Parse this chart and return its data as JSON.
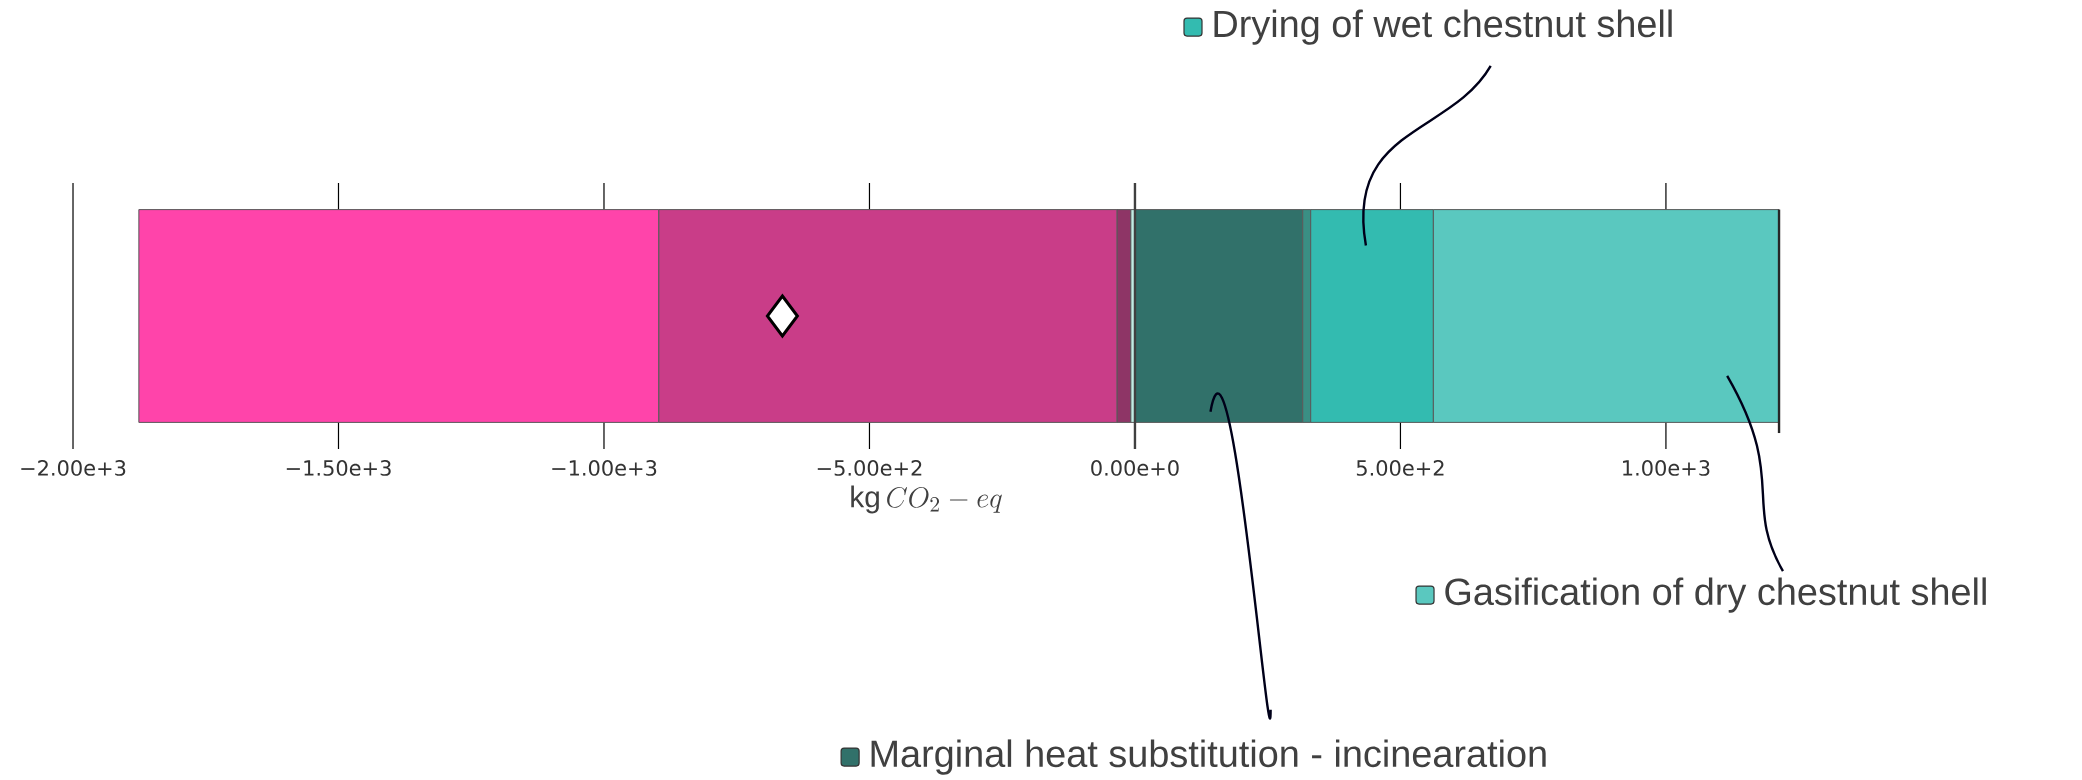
{
  "chart_data": {
    "type": "bar",
    "orientation": "horizontal",
    "stacked": true,
    "categories": [
      null
    ],
    "series": [
      {
        "color": "#c0ede4",
        "values": [
          -8
        ]
      },
      {
        "color": "#8e3566",
        "values": [
          -26
        ]
      },
      {
        "color": "#c93d88",
        "values": [
          -863
        ]
      },
      {
        "color": "#ff44aa",
        "values": [
          -979
        ]
      },
      {
        "name": "Marginal heat substitution - incinearation",
        "color": "#31716a",
        "values": [
          316
        ]
      },
      {
        "color": "#3a8f84",
        "values": [
          15
        ]
      },
      {
        "name": "Drying of wet chestnut shell",
        "color": "#33bbb0",
        "values": [
          231
        ]
      },
      {
        "name": "Gasification of dry chestnut shell",
        "color": "#5ac8bf",
        "values": [
          651
        ]
      },
      {
        "type": "scatter",
        "marker": "diamond",
        "color": "#ffffff",
        "values": [
          -664
        ]
      }
    ],
    "xlabel": "\\mathrm{kg}\\,CO_2 - eq",
    "xlim": [
      -2000,
      1213
    ],
    "legend": "bottom right",
    "xticks": [
      {
        "value": -2000,
        "label": "−2.00e+3"
      },
      {
        "value": -1500,
        "label": "−1.50e+3"
      },
      {
        "value": -1000,
        "label": "−1.00e+3"
      },
      {
        "value": -500,
        "label": "−5.00e+2"
      },
      {
        "value": 0,
        "label": "0.00e+0"
      },
      {
        "value": 500,
        "label": "5.00e+2"
      },
      {
        "value": 1000,
        "label": "1.00e+3"
      }
    ],
    "ref_lines": [
      {
        "axis": "x",
        "value": 0,
        "color": "#404040"
      }
    ],
    "grid": "x",
    "tick_labels": "x"
  }
}
